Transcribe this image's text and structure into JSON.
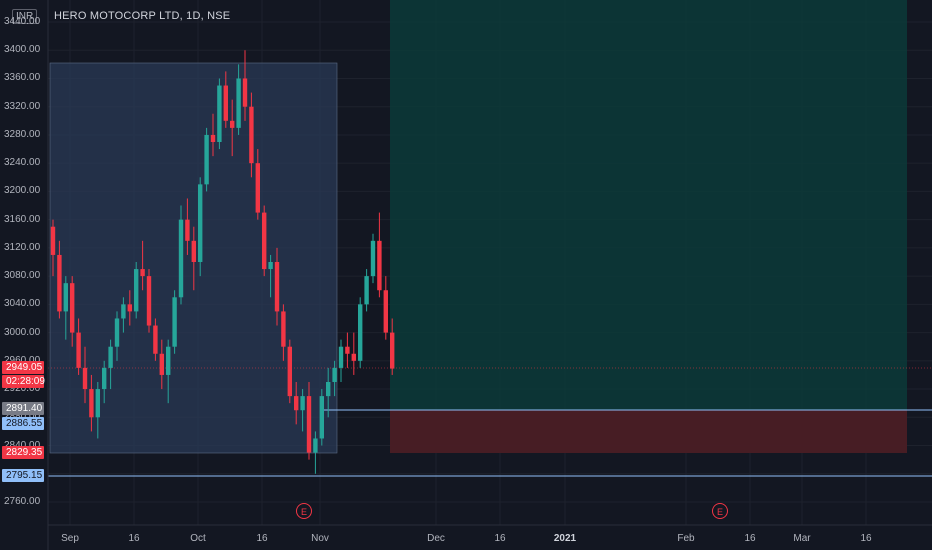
{
  "header": {
    "symbol_title": "HERO MOTOCORP LTD, 1D, NSE",
    "currency": "INR"
  },
  "axis": {
    "y_labels": [
      "3440.00",
      "3400.00",
      "3360.00",
      "3320.00",
      "3280.00",
      "3240.00",
      "3200.00",
      "3160.00",
      "3120.00",
      "3080.00",
      "3040.00",
      "3000.00",
      "2960.00",
      "2920.00",
      "2880.00",
      "2840.00",
      "2800.00",
      "2760.00"
    ],
    "x_labels": [
      {
        "text": "Sep",
        "bold": false
      },
      {
        "text": "16",
        "bold": false
      },
      {
        "text": "Oct",
        "bold": false
      },
      {
        "text": "16",
        "bold": false
      },
      {
        "text": "Nov",
        "bold": false
      },
      {
        "text": "Dec",
        "bold": false
      },
      {
        "text": "16",
        "bold": false
      },
      {
        "text": "2021",
        "bold": true
      },
      {
        "text": "Feb",
        "bold": false
      },
      {
        "text": "16",
        "bold": false
      },
      {
        "text": "Mar",
        "bold": false
      },
      {
        "text": "16",
        "bold": false
      }
    ]
  },
  "price_tags": [
    {
      "text": "2949.05",
      "bg": "#f23645",
      "fg": "#ffffff"
    },
    {
      "text": "02:28:09",
      "bg": "#f23645",
      "fg": "#ffffff"
    },
    {
      "text": "2891.40",
      "bg": "#787b86",
      "fg": "#ffffff"
    },
    {
      "text": "2886.55",
      "bg": "#90bff9",
      "fg": "#131722"
    },
    {
      "text": "2829.35",
      "bg": "#f23645",
      "fg": "#ffffff"
    },
    {
      "text": "2795.15",
      "bg": "#90bff9",
      "fg": "#131722"
    }
  ],
  "events": [
    {
      "label": "E"
    },
    {
      "label": "E"
    }
  ],
  "colors": {
    "up": "#26a69a",
    "down": "#f23645",
    "background": "#131722",
    "highlight_box": "#2a3a55",
    "target_zone": "#0d3a37",
    "stop_zone": "#4a1e25",
    "level_line": "#90bff9"
  },
  "chart_data": {
    "type": "candlestick",
    "title": "HERO MOTOCORP LTD, 1D, NSE",
    "ylim": [
      2740,
      3450
    ],
    "ohlc": [
      [
        3150,
        3160,
        3080,
        3110
      ],
      [
        3110,
        3130,
        3020,
        3030
      ],
      [
        3030,
        3080,
        2990,
        3070
      ],
      [
        3070,
        3080,
        2980,
        3000
      ],
      [
        3000,
        3020,
        2940,
        2950
      ],
      [
        2950,
        2980,
        2900,
        2920
      ],
      [
        2920,
        2940,
        2860,
        2880
      ],
      [
        2880,
        2930,
        2850,
        2920
      ],
      [
        2920,
        2960,
        2900,
        2950
      ],
      [
        2950,
        2990,
        2920,
        2980
      ],
      [
        2980,
        3030,
        2960,
        3020
      ],
      [
        3020,
        3050,
        3000,
        3040
      ],
      [
        3040,
        3060,
        3010,
        3030
      ],
      [
        3030,
        3100,
        3020,
        3090
      ],
      [
        3090,
        3130,
        3060,
        3080
      ],
      [
        3080,
        3090,
        3000,
        3010
      ],
      [
        3010,
        3020,
        2960,
        2970
      ],
      [
        2970,
        2990,
        2920,
        2940
      ],
      [
        2940,
        2990,
        2900,
        2980
      ],
      [
        2980,
        3060,
        2970,
        3050
      ],
      [
        3050,
        3180,
        3040,
        3160
      ],
      [
        3160,
        3190,
        3110,
        3130
      ],
      [
        3130,
        3150,
        3060,
        3100
      ],
      [
        3100,
        3220,
        3080,
        3210
      ],
      [
        3210,
        3290,
        3200,
        3280
      ],
      [
        3280,
        3310,
        3250,
        3270
      ],
      [
        3270,
        3360,
        3260,
        3350
      ],
      [
        3350,
        3370,
        3290,
        3300
      ],
      [
        3300,
        3330,
        3250,
        3290
      ],
      [
        3290,
        3380,
        3280,
        3360
      ],
      [
        3360,
        3400,
        3300,
        3320
      ],
      [
        3320,
        3340,
        3220,
        3240
      ],
      [
        3240,
        3260,
        3160,
        3170
      ],
      [
        3170,
        3180,
        3080,
        3090
      ],
      [
        3090,
        3110,
        3050,
        3100
      ],
      [
        3100,
        3120,
        3010,
        3030
      ],
      [
        3030,
        3040,
        2960,
        2980
      ],
      [
        2980,
        2990,
        2900,
        2910
      ],
      [
        2910,
        2930,
        2870,
        2890
      ],
      [
        2890,
        2920,
        2860,
        2910
      ],
      [
        2910,
        2930,
        2820,
        2830
      ],
      [
        2830,
        2860,
        2800,
        2850
      ],
      [
        2850,
        2920,
        2840,
        2910
      ],
      [
        2910,
        2950,
        2880,
        2930
      ],
      [
        2930,
        2960,
        2910,
        2950
      ],
      [
        2950,
        2990,
        2930,
        2980
      ],
      [
        2980,
        3000,
        2950,
        2970
      ],
      [
        2970,
        3000,
        2940,
        2960
      ],
      [
        2960,
        3050,
        2950,
        3040
      ],
      [
        3040,
        3090,
        3030,
        3080
      ],
      [
        3080,
        3140,
        3070,
        3130
      ],
      [
        3130,
        3170,
        3050,
        3060
      ],
      [
        3060,
        3080,
        2990,
        3000
      ],
      [
        3000,
        3020,
        2940,
        2949
      ]
    ]
  }
}
